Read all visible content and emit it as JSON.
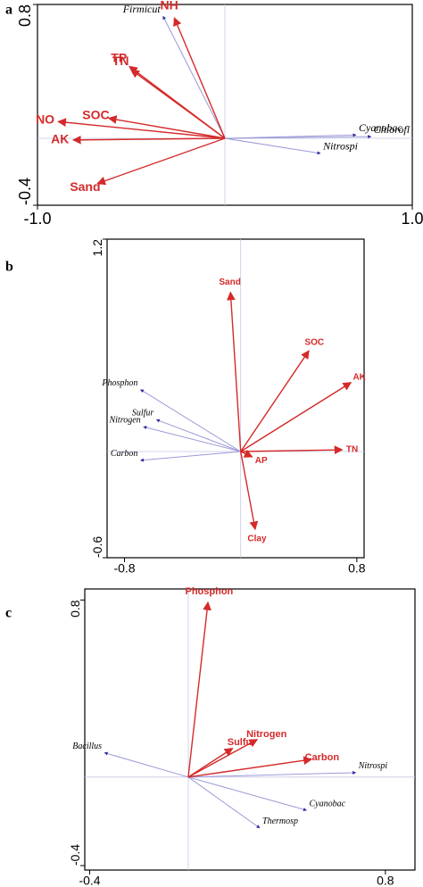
{
  "chart_data": [
    {
      "type": "biplot",
      "panel": "a",
      "xlim": [
        -1.0,
        1.0
      ],
      "ylim": [
        -0.4,
        0.8
      ],
      "xticks": [
        {
          "value": -1.0,
          "label": "-1.0"
        },
        {
          "value": 1.0,
          "label": "1.0"
        }
      ],
      "yticks": [
        -0.4,
        0.8
      ],
      "arrow_color": "#d42a2a",
      "species_color": "#9a9ad8",
      "arrows": [
        {
          "label": "NH",
          "x": -0.27,
          "y": 0.72
        },
        {
          "label": "TP",
          "x": -0.51,
          "y": 0.43
        },
        {
          "label": "TN",
          "x": -0.5,
          "y": 0.41
        },
        {
          "label": "SOC",
          "x": -0.62,
          "y": 0.12
        },
        {
          "label": "NO",
          "x": -0.89,
          "y": 0.1
        },
        {
          "label": "AK",
          "x": -0.81,
          "y": -0.01
        },
        {
          "label": "Sand",
          "x": -0.68,
          "y": -0.27
        }
      ],
      "species": [
        {
          "label": "Firmicut",
          "x": -0.33,
          "y": 0.73
        },
        {
          "label": "Cyanobac",
          "x": 0.7,
          "y": 0.02
        },
        {
          "label": "Chlorofl",
          "x": 0.78,
          "y": 0.01
        },
        {
          "label": "Nitrospi",
          "x": 0.51,
          "y": -0.09
        }
      ]
    },
    {
      "type": "biplot",
      "panel": "b",
      "xlim": [
        -0.92,
        0.85
      ],
      "ylim": [
        -0.6,
        1.2
      ],
      "xticks": [
        -0.8,
        0.8
      ],
      "yticks": [
        -0.6,
        1.2
      ],
      "arrow_color": "#d42a2a",
      "species_color": "#9a9ad8",
      "arrows": [
        {
          "label": "Sand",
          "x": -0.07,
          "y": 0.9
        },
        {
          "label": "SOC",
          "x": 0.47,
          "y": 0.57
        },
        {
          "label": "AK",
          "x": 0.76,
          "y": 0.39
        },
        {
          "label": "TN",
          "x": 0.7,
          "y": 0.01
        },
        {
          "label": "AP",
          "x": 0.08,
          "y": -0.03
        },
        {
          "label": "Clay",
          "x": 0.1,
          "y": -0.44
        }
      ],
      "species": [
        {
          "label": "Phosphon",
          "x": -0.69,
          "y": 0.35
        },
        {
          "label": "Sulfur",
          "x": -0.58,
          "y": 0.18
        },
        {
          "label": "Nitrogen",
          "x": -0.67,
          "y": 0.14
        },
        {
          "label": "Carbon",
          "x": -0.69,
          "y": -0.05
        }
      ]
    },
    {
      "type": "biplot",
      "panel": "c",
      "xlim": [
        -0.42,
        0.92
      ],
      "ylim": [
        -0.42,
        0.85
      ],
      "xticks": [
        -0.4,
        0.8
      ],
      "yticks": [
        -0.4,
        0.8
      ],
      "arrow_color": "#d42a2a",
      "species_color": "#9a9ad8",
      "arrows": [
        {
          "label": "Phosphon",
          "x": 0.08,
          "y": 0.79
        },
        {
          "label": "Nitrogen",
          "x": 0.28,
          "y": 0.17
        },
        {
          "label": "Sulfur",
          "x": 0.18,
          "y": 0.13
        },
        {
          "label": "Carbon",
          "x": 0.5,
          "y": 0.08
        }
      ],
      "species": [
        {
          "label": "Bacillus",
          "x": -0.34,
          "y": 0.11
        },
        {
          "label": "Nitrospi",
          "x": 0.68,
          "y": 0.02
        },
        {
          "label": "Cyanobac",
          "x": 0.48,
          "y": -0.15
        },
        {
          "label": "Thermosp",
          "x": 0.29,
          "y": -0.23
        }
      ]
    }
  ]
}
